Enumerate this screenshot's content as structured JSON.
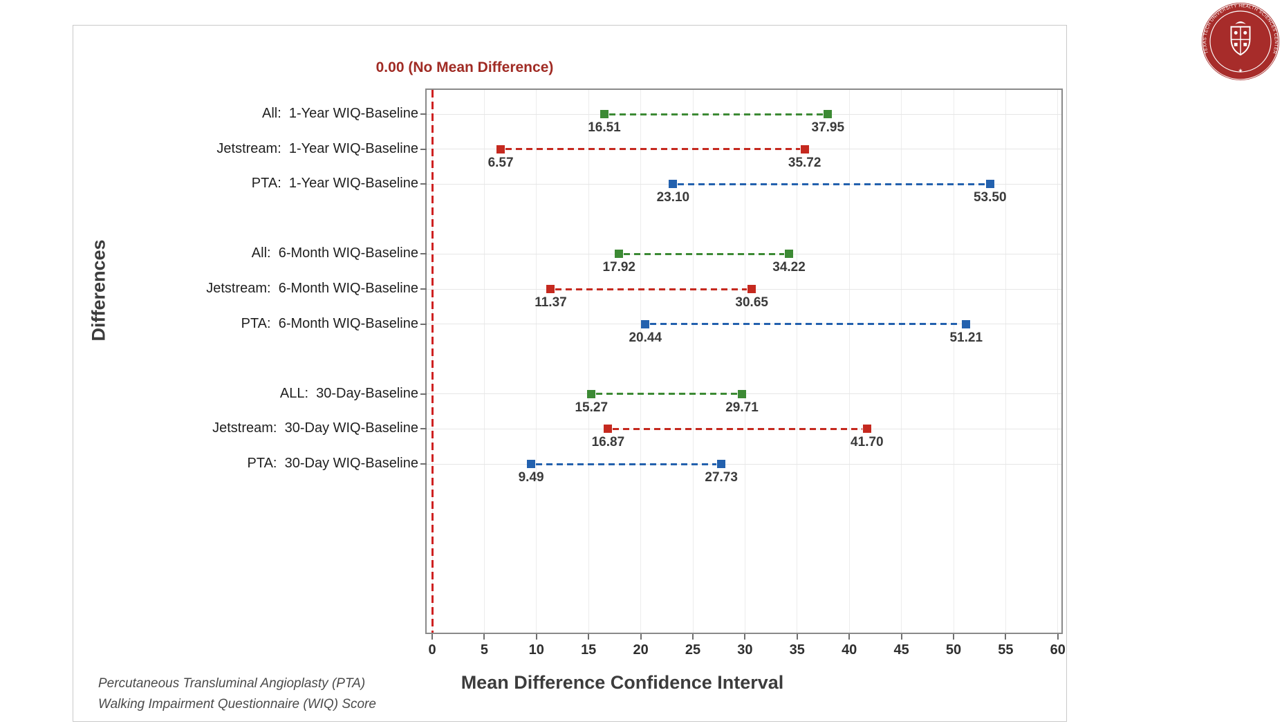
{
  "chart_data": {
    "type": "scatter",
    "subtype": "confidence-interval-dumbbell-plot",
    "title": "",
    "xlabel": "Mean Difference Confidence Interval",
    "ylabel": "Differences",
    "xlim": [
      -0.5,
      60.8
    ],
    "xticks": [
      0,
      5,
      10,
      15,
      20,
      25,
      30,
      35,
      40,
      45,
      50,
      55,
      60
    ],
    "grid": "on",
    "legend": "none",
    "reference_line": {
      "x": 0,
      "label": "0.00 (No Mean Difference)",
      "color": "#CE2121",
      "style": "dashed"
    },
    "series_colors": {
      "all": "#3C8A34",
      "jetstream": "#C5291F",
      "pta": "#2361AE"
    },
    "rows": [
      {
        "label": "All:  1-Year WIQ-Baseline",
        "series": "all",
        "lower": 16.51,
        "upper": 37.95,
        "slot": 0
      },
      {
        "label": "Jetstream:  1-Year WIQ-Baseline",
        "series": "jetstream",
        "lower": 6.57,
        "upper": 35.72,
        "slot": 1
      },
      {
        "label": "PTA:  1-Year WIQ-Baseline",
        "series": "pta",
        "lower": 23.1,
        "upper": 53.5,
        "slot": 2
      },
      {
        "label": "All:  6-Month WIQ-Baseline",
        "series": "all",
        "lower": 17.92,
        "upper": 34.22,
        "slot": 4
      },
      {
        "label": "Jetstream:  6-Month WIQ-Baseline",
        "series": "jetstream",
        "lower": 11.37,
        "upper": 30.65,
        "slot": 5
      },
      {
        "label": "PTA:  6-Month WIQ-Baseline",
        "series": "pta",
        "lower": 20.44,
        "upper": 51.21,
        "slot": 6
      },
      {
        "label": "ALL:  30-Day-Baseline",
        "series": "all",
        "lower": 15.27,
        "upper": 29.71,
        "slot": 8
      },
      {
        "label": "Jetstream:  30-Day WIQ-Baseline",
        "series": "jetstream",
        "lower": 16.87,
        "upper": 41.7,
        "slot": 9
      },
      {
        "label": "PTA:  30-Day WIQ-Baseline",
        "series": "pta",
        "lower": 9.49,
        "upper": 27.73,
        "slot": 10
      }
    ],
    "footnotes": [
      "Percutaneous Transluminal Angioplasty (PTA)",
      "Walking Impairment Questionnaire (WIQ) Score"
    ]
  },
  "logo": {
    "ring_text": "TEXAS TECH UNIVERSITY HEALTH SCIENCES CENTER",
    "star": "★",
    "color": "#A72C2A"
  }
}
